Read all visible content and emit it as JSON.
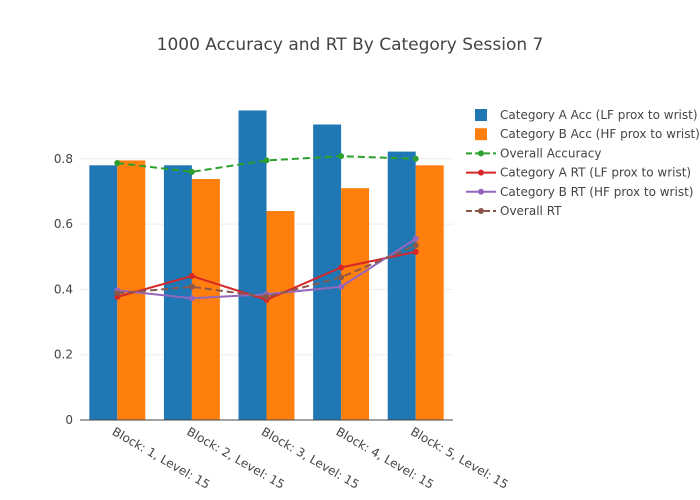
{
  "chart_data": {
    "type": "bar",
    "title": "1000 Accuracy and RT By Category Session 7",
    "xlabel": "",
    "ylabel": "",
    "categories": [
      "Block: 1, Level: 15",
      "Block: 2, Level: 15",
      "Block: 3, Level: 15",
      "Block: 4, Level: 15",
      "Block: 5, Level: 15"
    ],
    "ylim": [
      0,
      0.98
    ],
    "yticks": [
      0,
      0.2,
      0.4,
      0.6,
      0.8
    ],
    "ytick_labels": [
      "0",
      "0.2",
      "0.4",
      "0.6",
      "0.8"
    ],
    "grid": true,
    "legend_position": "right",
    "bar_series": [
      {
        "name": "Category A Acc (LF prox to wrist)",
        "color": "#1f77b4",
        "values": [
          0.78,
          0.78,
          0.948,
          0.905,
          0.822
        ]
      },
      {
        "name": "Category B Acc (HF prox to wrist)",
        "color": "#ff7f0e",
        "values": [
          0.795,
          0.738,
          0.64,
          0.71,
          0.78
        ]
      }
    ],
    "line_series": [
      {
        "name": "Overall Accuracy",
        "color": "#2ca02c",
        "dash": true,
        "values": [
          0.787,
          0.76,
          0.795,
          0.808,
          0.8
        ]
      },
      {
        "name": "Category A RT (LF prox to wrist)",
        "color": "#d62728",
        "dash": false,
        "values": [
          0.377,
          0.441,
          0.368,
          0.467,
          0.515
        ]
      },
      {
        "name": "Category B RT (HF prox to wrist)",
        "color": "#9467bd",
        "dash": false,
        "values": [
          0.397,
          0.373,
          0.385,
          0.408,
          0.555
        ]
      },
      {
        "name": "Overall RT",
        "color": "#8c564b",
        "dash": true,
        "values": [
          0.388,
          0.408,
          0.377,
          0.437,
          0.535
        ]
      }
    ]
  }
}
